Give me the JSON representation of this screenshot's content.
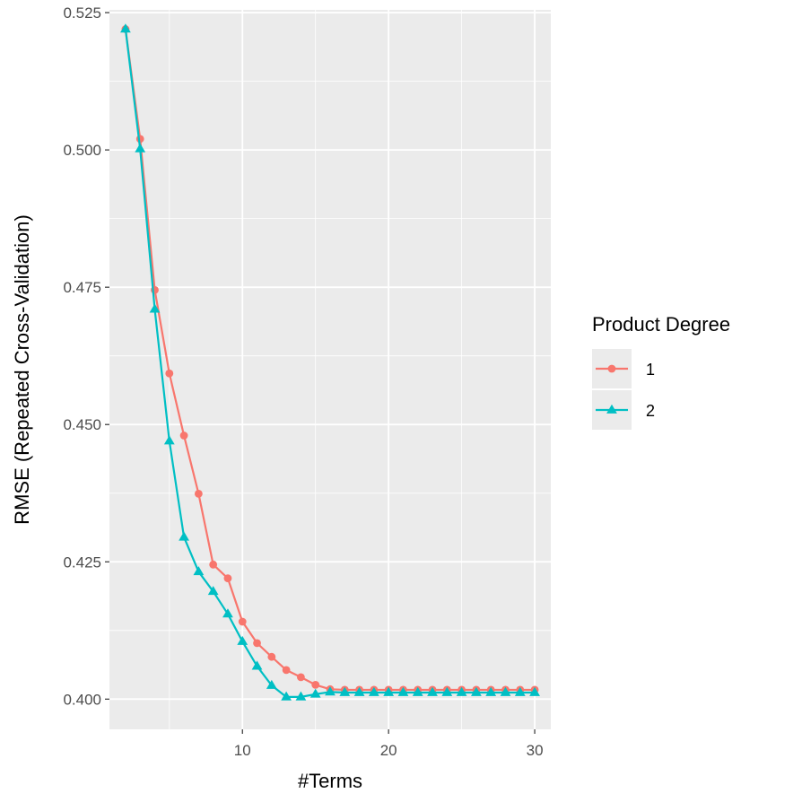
{
  "chart_data": {
    "type": "line",
    "xlabel": "#Terms",
    "ylabel": "RMSE (Repeated Cross-Validation)",
    "xlim": [
      0.9,
      31.1
    ],
    "ylim": [
      0.3945,
      0.5255
    ],
    "x_ticks": [
      10,
      20,
      30
    ],
    "x_minor_ticks": [
      5,
      15,
      25
    ],
    "y_ticks": [
      0.4,
      0.425,
      0.45,
      0.475,
      0.5,
      0.525
    ],
    "y_tick_labels": [
      "0.400",
      "0.425",
      "0.450",
      "0.475",
      "0.500",
      "0.525"
    ],
    "grid": true,
    "legend": {
      "title": "Product Degree",
      "position": "right"
    },
    "series": [
      {
        "name": "1",
        "color": "#F8766D",
        "marker": "circle",
        "x": [
          2,
          3,
          4,
          5,
          6,
          7,
          8,
          9,
          10,
          11,
          12,
          13,
          14,
          15,
          16,
          17,
          18,
          19,
          20,
          21,
          22,
          23,
          24,
          25,
          26,
          27,
          28,
          29,
          30
        ],
        "y": [
          0.522,
          0.502,
          0.4745,
          0.4593,
          0.448,
          0.4374,
          0.4245,
          0.422,
          0.4141,
          0.4102,
          0.4077,
          0.4053,
          0.404,
          0.4026,
          0.4018,
          0.4017,
          0.4017,
          0.4017,
          0.4017,
          0.4017,
          0.4017,
          0.4017,
          0.4017,
          0.4017,
          0.4017,
          0.4017,
          0.4017,
          0.4017,
          0.4017
        ]
      },
      {
        "name": "2",
        "color": "#00BFC4",
        "marker": "triangle",
        "x": [
          2,
          3,
          4,
          5,
          6,
          7,
          8,
          9,
          10,
          11,
          12,
          13,
          14,
          15,
          16,
          17,
          18,
          19,
          20,
          21,
          22,
          23,
          24,
          25,
          26,
          27,
          28,
          29,
          30
        ],
        "y": [
          0.522,
          0.5002,
          0.471,
          0.447,
          0.4295,
          0.4232,
          0.4196,
          0.4155,
          0.4105,
          0.406,
          0.4025,
          0.4004,
          0.4004,
          0.4009,
          0.4013,
          0.4012,
          0.4012,
          0.4012,
          0.4012,
          0.4012,
          0.4012,
          0.4012,
          0.4012,
          0.4012,
          0.4012,
          0.4012,
          0.4012,
          0.4012,
          0.4012
        ]
      }
    ]
  }
}
